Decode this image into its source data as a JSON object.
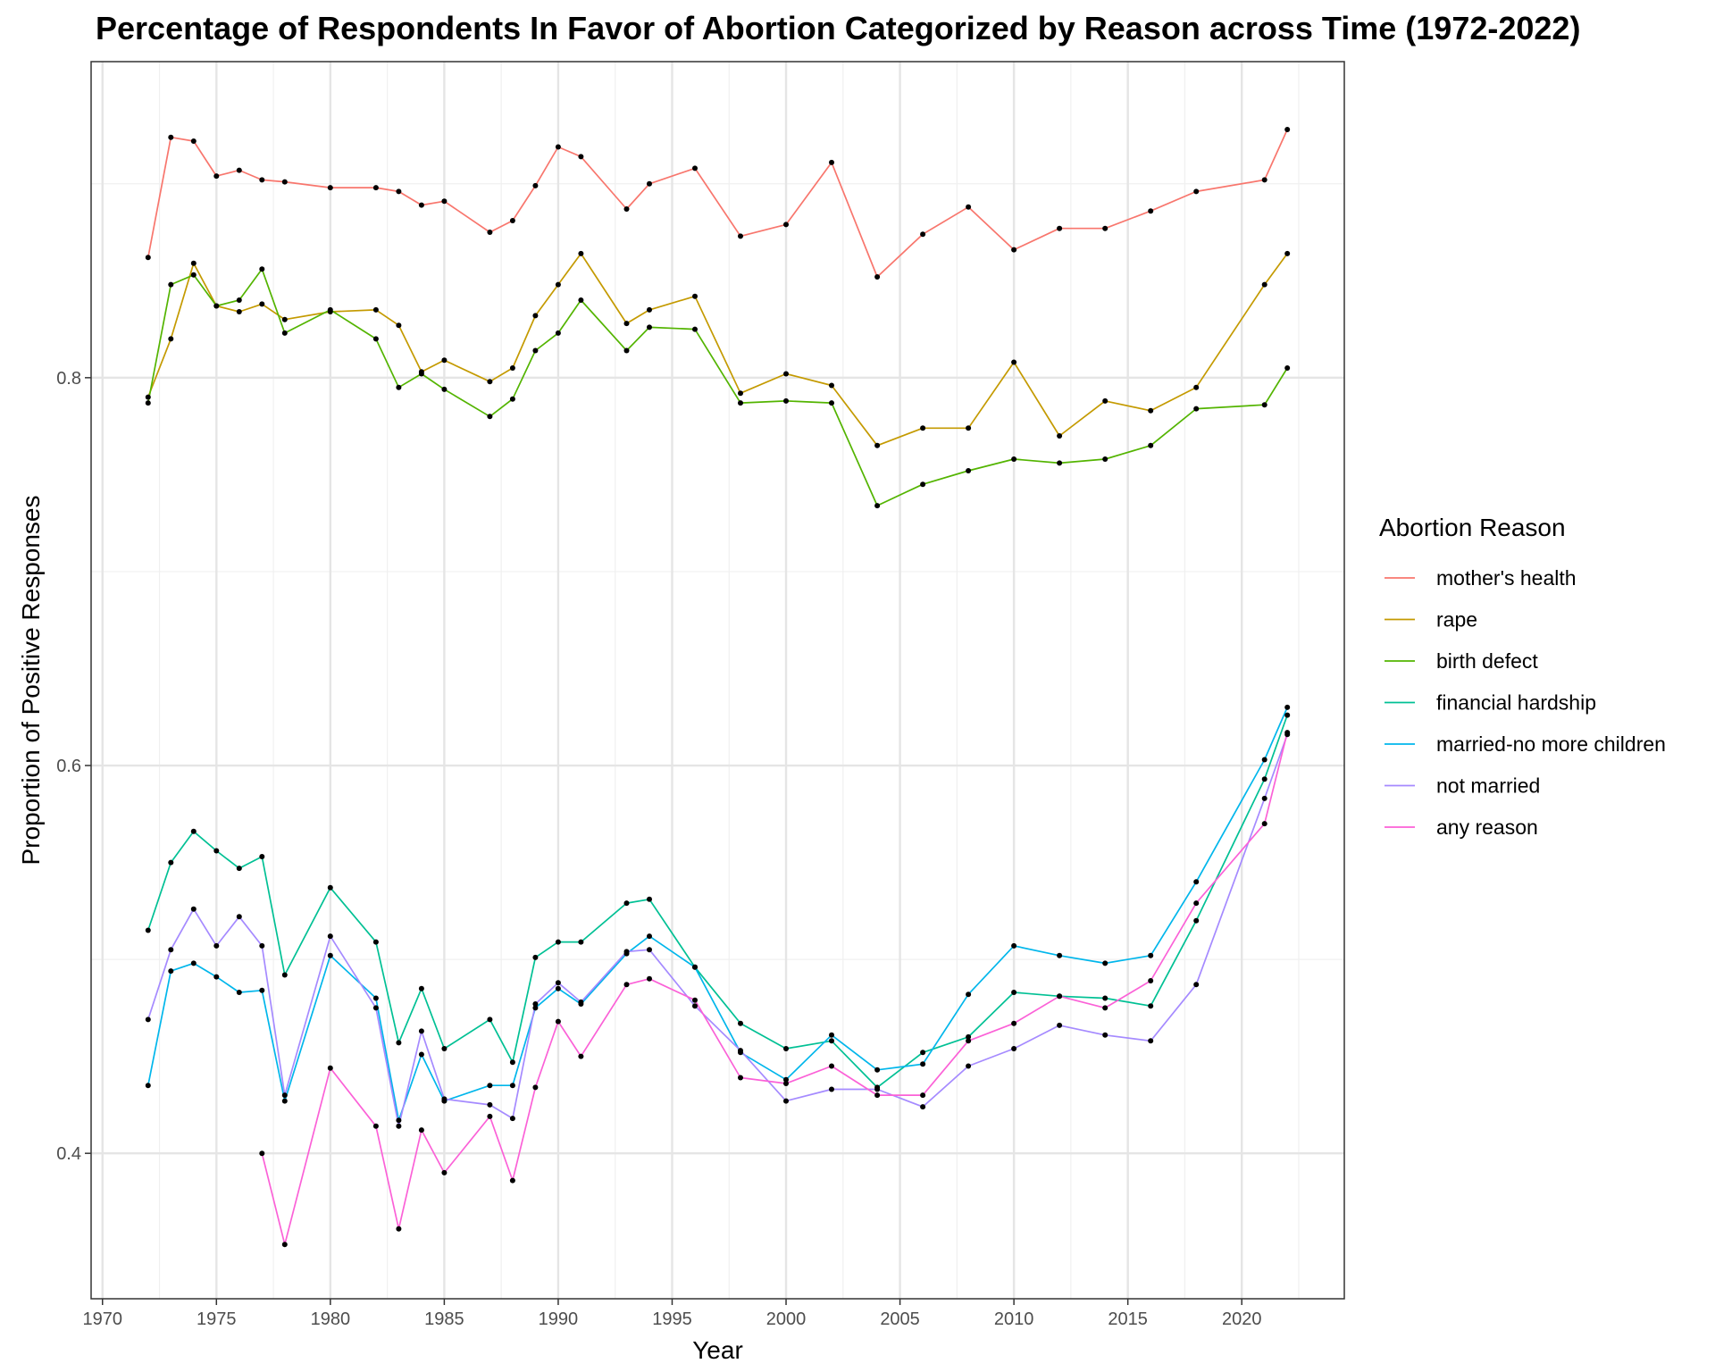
{
  "chart_data": {
    "type": "line",
    "title": "Percentage of Respondents In Favor of Abortion Categorized by Reason across Time (1972-2022)",
    "xlabel": "Year",
    "ylabel": "Proportion of Positive Responses",
    "xlim": [
      1969.5,
      2024.5
    ],
    "ylim": [
      0.325,
      0.963
    ],
    "x_ticks": [
      1970,
      1975,
      1980,
      1985,
      1990,
      1995,
      2000,
      2005,
      2010,
      2015,
      2020
    ],
    "x_tick_labels": [
      "1970",
      "1975",
      "1980",
      "1985",
      "1990",
      "1995",
      "2000",
      "2005",
      "2010",
      "2015",
      "2020"
    ],
    "y_ticks": [
      0.4,
      0.6,
      0.8
    ],
    "y_tick_labels": [
      "0.4",
      "0.6",
      "0.8"
    ],
    "grid": true,
    "legend_title": "Abortion Reason",
    "legend_position": "right",
    "series": [
      {
        "name": "mother's health",
        "color": "#F8766D",
        "x": [
          1972,
          1973,
          1974,
          1975,
          1976,
          1977,
          1978,
          1980,
          1982,
          1983,
          1984,
          1985,
          1987,
          1988,
          1989,
          1990,
          1991,
          1993,
          1994,
          1996,
          1998,
          2000,
          2002,
          2004,
          2006,
          2008,
          2010,
          2012,
          2014,
          2016,
          2018,
          2021,
          2022
        ],
        "y": [
          0.862,
          0.924,
          0.922,
          0.904,
          0.907,
          0.902,
          0.901,
          0.898,
          0.898,
          0.896,
          0.889,
          0.891,
          0.875,
          0.881,
          0.899,
          0.919,
          0.914,
          0.887,
          0.9,
          0.908,
          0.873,
          0.879,
          0.911,
          0.852,
          0.874,
          0.888,
          0.866,
          0.877,
          0.877,
          0.886,
          0.896,
          0.902,
          0.928
        ]
      },
      {
        "name": "rape",
        "color": "#C49A00",
        "x": [
          1972,
          1973,
          1974,
          1975,
          1976,
          1977,
          1978,
          1980,
          1982,
          1983,
          1984,
          1985,
          1987,
          1988,
          1989,
          1990,
          1991,
          1993,
          1994,
          1996,
          1998,
          2000,
          2002,
          2004,
          2006,
          2008,
          2010,
          2012,
          2014,
          2016,
          2018,
          2021,
          2022
        ],
        "y": [
          0.79,
          0.82,
          0.859,
          0.837,
          0.834,
          0.838,
          0.83,
          0.834,
          0.835,
          0.827,
          0.803,
          0.809,
          0.798,
          0.805,
          0.832,
          0.848,
          0.864,
          0.828,
          0.835,
          0.842,
          0.792,
          0.802,
          0.796,
          0.765,
          0.774,
          0.774,
          0.808,
          0.77,
          0.788,
          0.783,
          0.795,
          0.848,
          0.864
        ]
      },
      {
        "name": "birth defect",
        "color": "#53B400",
        "x": [
          1972,
          1973,
          1974,
          1975,
          1976,
          1977,
          1978,
          1980,
          1982,
          1983,
          1984,
          1985,
          1987,
          1988,
          1989,
          1990,
          1991,
          1993,
          1994,
          1996,
          1998,
          2000,
          2002,
          2004,
          2006,
          2008,
          2010,
          2012,
          2014,
          2016,
          2018,
          2021,
          2022
        ],
        "y": [
          0.787,
          0.848,
          0.853,
          0.837,
          0.84,
          0.856,
          0.823,
          0.835,
          0.82,
          0.795,
          0.802,
          0.794,
          0.78,
          0.789,
          0.814,
          0.823,
          0.84,
          0.814,
          0.826,
          0.825,
          0.787,
          0.788,
          0.787,
          0.734,
          0.745,
          0.752,
          0.758,
          0.756,
          0.758,
          0.765,
          0.784,
          0.786,
          0.805
        ]
      },
      {
        "name": "financial hardship",
        "color": "#00C094",
        "x": [
          1972,
          1973,
          1974,
          1975,
          1976,
          1977,
          1978,
          1980,
          1982,
          1983,
          1984,
          1985,
          1987,
          1988,
          1989,
          1990,
          1991,
          1993,
          1994,
          1996,
          1998,
          2000,
          2002,
          2004,
          2006,
          2008,
          2010,
          2012,
          2014,
          2016,
          2018,
          2021,
          2022
        ],
        "y": [
          0.515,
          0.55,
          0.566,
          0.556,
          0.547,
          0.553,
          0.492,
          0.537,
          0.509,
          0.457,
          0.485,
          0.454,
          0.469,
          0.447,
          0.501,
          0.509,
          0.509,
          0.529,
          0.531,
          0.496,
          0.467,
          0.454,
          0.458,
          0.434,
          0.452,
          0.46,
          0.483,
          0.481,
          0.48,
          0.476,
          0.52,
          0.593,
          0.626
        ]
      },
      {
        "name": "married-no more children",
        "color": "#00B6EB",
        "x": [
          1972,
          1973,
          1974,
          1975,
          1976,
          1977,
          1978,
          1980,
          1982,
          1983,
          1984,
          1985,
          1987,
          1988,
          1989,
          1990,
          1991,
          1993,
          1994,
          1996,
          1998,
          2000,
          2002,
          2004,
          2006,
          2008,
          2010,
          2012,
          2014,
          2016,
          2018,
          2021,
          2022
        ],
        "y": [
          0.435,
          0.494,
          0.498,
          0.491,
          0.483,
          0.484,
          0.427,
          0.502,
          0.48,
          0.417,
          0.451,
          0.427,
          0.435,
          0.435,
          0.475,
          0.485,
          0.477,
          0.503,
          0.512,
          0.496,
          0.452,
          0.438,
          0.461,
          0.443,
          0.446,
          0.482,
          0.507,
          0.502,
          0.498,
          0.502,
          0.54,
          0.603,
          0.63
        ]
      },
      {
        "name": "not married",
        "color": "#A58AFF",
        "x": [
          1972,
          1973,
          1974,
          1975,
          1976,
          1977,
          1978,
          1980,
          1982,
          1983,
          1984,
          1985,
          1987,
          1988,
          1989,
          1990,
          1991,
          1993,
          1994,
          1996,
          1998,
          2000,
          2002,
          2004,
          2006,
          2008,
          2010,
          2012,
          2014,
          2016,
          2018,
          2021,
          2022
        ],
        "y": [
          0.469,
          0.505,
          0.526,
          0.507,
          0.522,
          0.507,
          0.43,
          0.512,
          0.475,
          0.414,
          0.463,
          0.428,
          0.425,
          0.418,
          0.477,
          0.488,
          0.478,
          0.504,
          0.505,
          0.476,
          0.453,
          0.427,
          0.433,
          0.433,
          0.424,
          0.445,
          0.454,
          0.466,
          0.461,
          0.458,
          0.487,
          0.583,
          0.616
        ]
      },
      {
        "name": "any reason",
        "color": "#FB61D7",
        "x": [
          1977,
          1978,
          1980,
          1982,
          1983,
          1984,
          1985,
          1987,
          1988,
          1989,
          1990,
          1991,
          1993,
          1994,
          1996,
          1998,
          2000,
          2002,
          2004,
          2006,
          2008,
          2010,
          2012,
          2014,
          2016,
          2018,
          2021,
          2022
        ],
        "y": [
          0.4,
          0.353,
          0.444,
          0.414,
          0.361,
          0.412,
          0.39,
          0.419,
          0.386,
          0.434,
          0.468,
          0.45,
          0.487,
          0.49,
          0.479,
          0.439,
          0.436,
          0.445,
          0.43,
          0.43,
          0.458,
          0.467,
          0.481,
          0.475,
          0.489,
          0.529,
          0.57,
          0.617
        ]
      }
    ]
  }
}
